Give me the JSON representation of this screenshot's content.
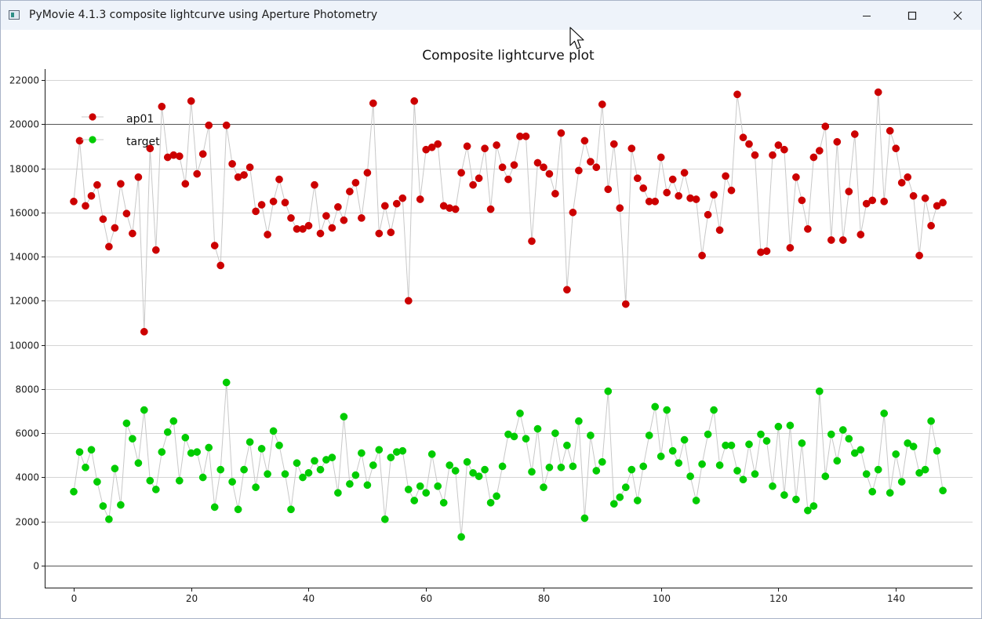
{
  "window": {
    "title": "PyMovie 4.1.3 composite lightcurve using Aperture Photometry",
    "controls": {
      "minimize_icon": "minimize-icon",
      "maximize_icon": "maximize-icon",
      "close_icon": "close-icon"
    }
  },
  "chart_data": {
    "type": "scatter",
    "title": "Composite lightcurve plot",
    "xlabel": "",
    "ylabel": "",
    "xlim": [
      -5,
      153
    ],
    "ylim": [
      -1000,
      22500
    ],
    "xticks": [
      0,
      20,
      40,
      60,
      80,
      100,
      120,
      140
    ],
    "yticks": [
      0,
      2000,
      4000,
      6000,
      8000,
      10000,
      12000,
      14000,
      16000,
      18000,
      20000,
      22000
    ],
    "grid": "horizontal",
    "legend_position": "top-left",
    "connector_color": "#c8c8c8",
    "series": [
      {
        "name": "ap01",
        "color": "#cc0000",
        "values": [
          16500,
          19250,
          16300,
          16750,
          17250,
          15700,
          14450,
          15300,
          17300,
          15950,
          15050,
          17600,
          10600,
          18900,
          14300,
          20800,
          18500,
          18600,
          18550,
          17300,
          21050,
          17750,
          18650,
          19950,
          14500,
          13600,
          19950,
          18200,
          17600,
          17700,
          18050,
          16050,
          16350,
          15000,
          16500,
          17500,
          16450,
          15750,
          15250,
          15250,
          15400,
          17250,
          15050,
          15850,
          15300,
          16250,
          15650,
          16950,
          17350,
          15750,
          17800,
          20950,
          15050,
          16300,
          15100,
          16400,
          16650,
          12000,
          21050,
          16600,
          18850,
          18950,
          19100,
          16300,
          16200,
          16150,
          17800,
          19000,
          17250,
          17550,
          18900,
          16150,
          19050,
          18050,
          17500,
          18150,
          19450,
          19450,
          14700,
          18250,
          18050,
          17750,
          16850,
          19600,
          12500,
          16000,
          17900,
          19250,
          18300,
          18050,
          20900,
          17050,
          19100,
          16200,
          11850,
          18900,
          17550,
          17100,
          16500,
          16500,
          18500,
          16900,
          17500,
          16750,
          17800,
          16650,
          16600,
          14050,
          15900,
          16800,
          15200,
          17650,
          17000,
          21350,
          19400,
          19100,
          18600,
          14200,
          14250,
          18600,
          19050,
          18850,
          14400,
          17600,
          16550,
          15250,
          18500,
          18800,
          19900,
          14750,
          19200,
          14750,
          16950,
          19550,
          15000,
          16400,
          16550,
          21450,
          16500,
          19700,
          18900,
          17350,
          17600,
          16750,
          14050,
          16650,
          15400,
          16300,
          16450
        ]
      },
      {
        "name": "target",
        "color": "#00cc00",
        "values": [
          3350,
          5150,
          4450,
          5250,
          3800,
          2700,
          2100,
          4400,
          2750,
          6450,
          5750,
          4650,
          7050,
          3850,
          3450,
          5150,
          6050,
          6550,
          3850,
          5800,
          5100,
          5150,
          4000,
          5350,
          2650,
          4350,
          8300,
          3800,
          2550,
          4350,
          5600,
          3550,
          5300,
          4150,
          6100,
          5450,
          4150,
          2550,
          4650,
          4000,
          4200,
          4750,
          4350,
          4800,
          4900,
          3300,
          6750,
          3700,
          4100,
          5100,
          3650,
          4550,
          5250,
          2100,
          4900,
          5150,
          5200,
          3450,
          2950,
          3600,
          3300,
          5050,
          3600,
          2850,
          4550,
          4300,
          1300,
          4700,
          4200,
          4050,
          4350,
          2850,
          3150,
          4500,
          5950,
          5850,
          6900,
          5750,
          4250,
          6200,
          3550,
          4450,
          6000,
          4450,
          5450,
          4500,
          6550,
          2150,
          5900,
          4300,
          4700,
          7900,
          2800,
          3100,
          3550,
          4350,
          2950,
          4500,
          5900,
          7200,
          4950,
          7050,
          5200,
          4650,
          5700,
          4050,
          2950,
          4600,
          5950,
          7050,
          4550,
          5450,
          5450,
          4300,
          3900,
          5500,
          4150,
          5950,
          5650,
          3600,
          6300,
          3200,
          6350,
          3000,
          5550,
          2500,
          2700,
          7900,
          4050,
          5950,
          4750,
          6150,
          5750,
          5100,
          5250,
          4150,
          3350,
          4350,
          6900,
          3300,
          5050,
          3800,
          5550,
          5400,
          4200,
          4350,
          6550,
          5200,
          3400
        ]
      }
    ]
  }
}
